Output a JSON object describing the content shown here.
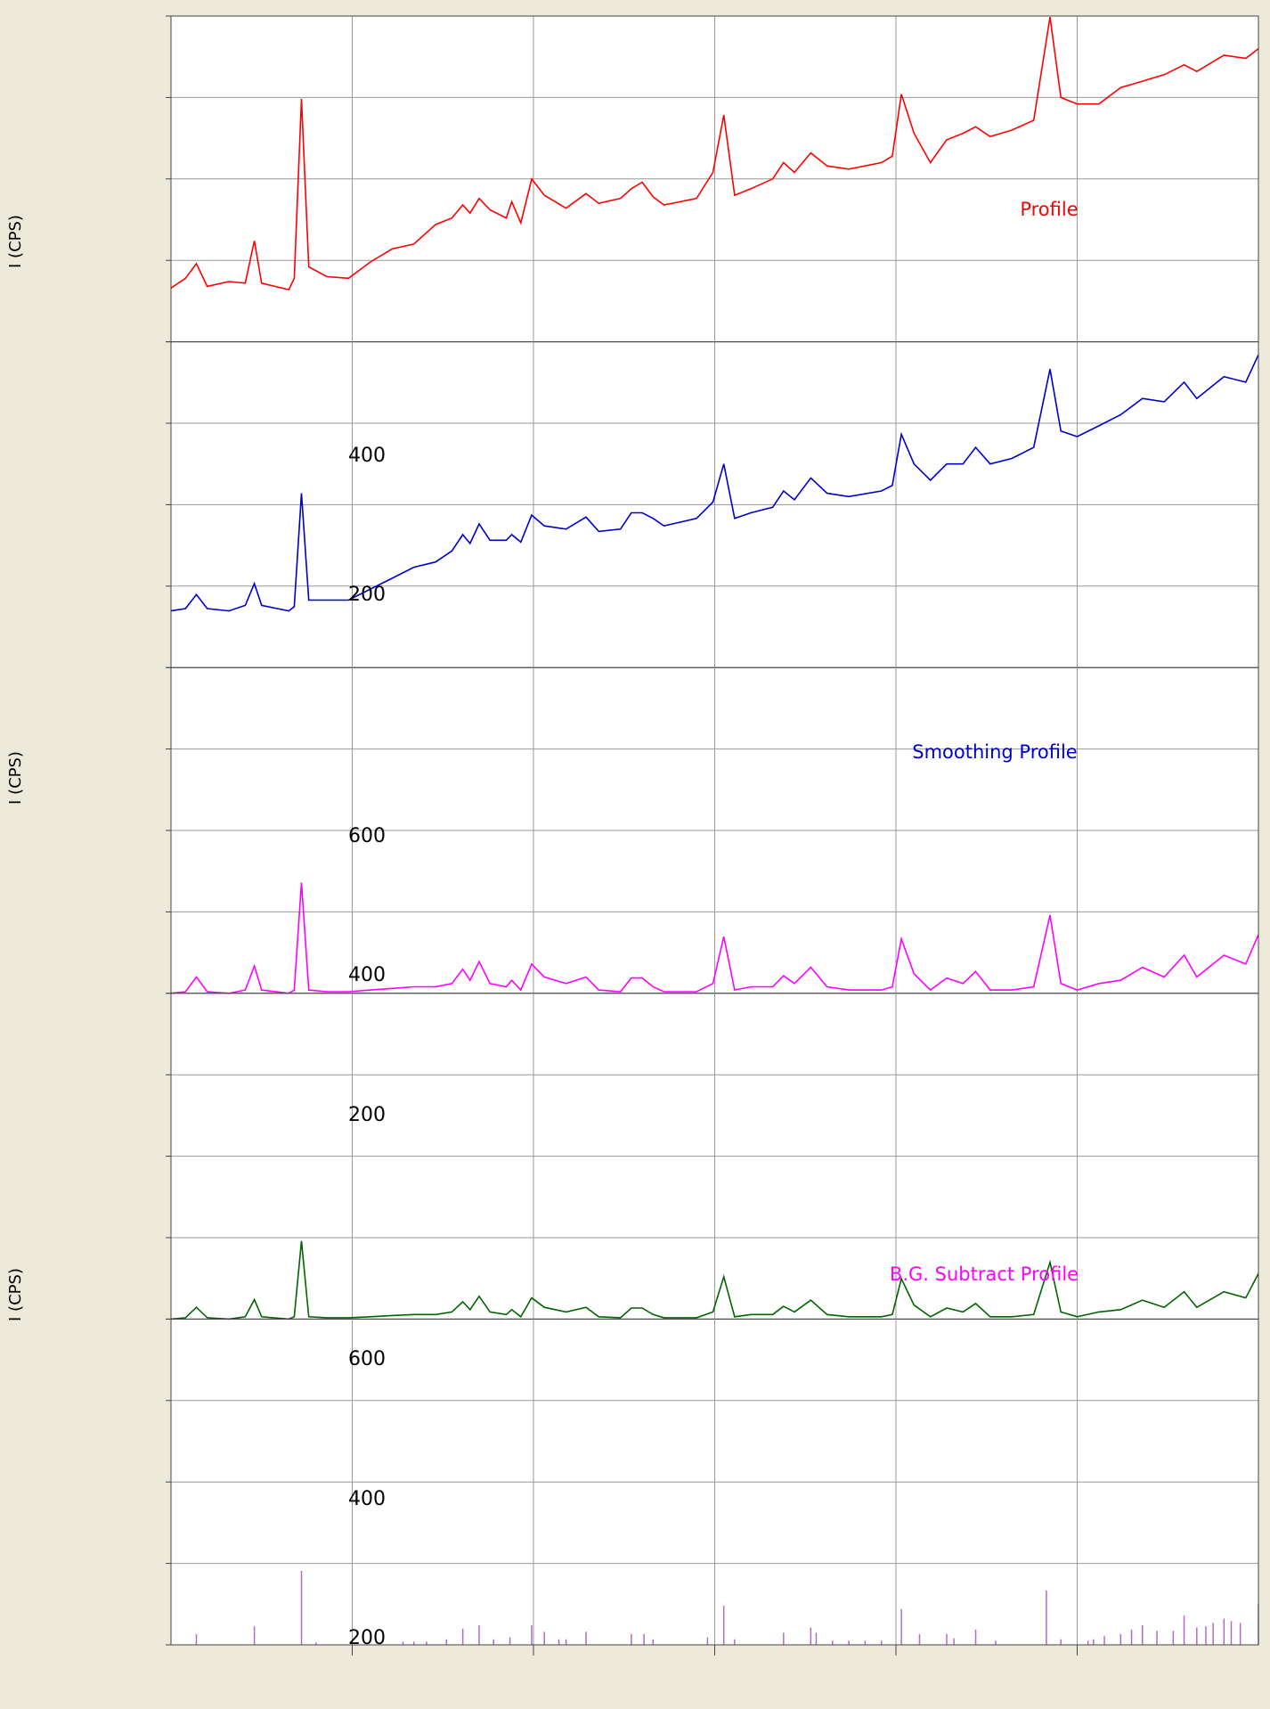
{
  "chart_data": [
    {
      "type": "line",
      "xlim": [
        0,
        60
      ],
      "ylim": [
        0,
        100
      ],
      "xticks": [
        10,
        20,
        30,
        40,
        50
      ],
      "yticks": [
        0,
        25,
        50,
        75,
        100
      ],
      "grid": true,
      "x": [
        0,
        0.8,
        1.4,
        2.0,
        3.2,
        4.1,
        4.6,
        5.0,
        6.5,
        6.8,
        7.2,
        7.6,
        8.6,
        9.8,
        11.0,
        12.2,
        13.4,
        14.6,
        15.5,
        16.1,
        16.5,
        17.0,
        17.6,
        18.5,
        18.8,
        19.3,
        19.9,
        20.6,
        21.8,
        22.9,
        23.6,
        24.8,
        25.4,
        26.0,
        26.6,
        27.2,
        29.0,
        29.9,
        30.5,
        31.1,
        32.0,
        33.2,
        33.8,
        34.4,
        35.3,
        36.2,
        37.4,
        39.2,
        39.8,
        40.3,
        41.0,
        41.9,
        42.8,
        43.7,
        44.4,
        45.2,
        46.4,
        47.6,
        48.5,
        49.1,
        50.0,
        51.2,
        52.4,
        53.6,
        54.8,
        55.9,
        56.6,
        58.1,
        59.3,
        60.0
      ],
      "series": [
        {
          "color": "#ff0000",
          "values": [
            16.5,
            19.5,
            24,
            17,
            18.5,
            18,
            31,
            18,
            16,
            19.5,
            74.6,
            23,
            20,
            19.5,
            24.5,
            28.5,
            30,
            36,
            38,
            42,
            39.5,
            44,
            40.5,
            38,
            43,
            36.5,
            50,
            45,
            41,
            45.5,
            42.5,
            44,
            47,
            49,
            44.5,
            42,
            44,
            52,
            69.6,
            45,
            47,
            50,
            55,
            52,
            58,
            54,
            53,
            55,
            57,
            76,
            64,
            55,
            62,
            64,
            66,
            63,
            65,
            68,
            99.7,
            75,
            73,
            73,
            78,
            80,
            82,
            85,
            83,
            88,
            87,
            90
          ]
        },
        {
          "color": "#0000cc",
          "values": [
            17.4,
            18.1,
            22.4,
            18.1,
            17.4,
            19.1,
            25.8,
            19.1,
            17.4,
            18.7,
            53.5,
            20.7,
            20.7,
            20.7,
            24.1,
            27.4,
            30.8,
            32.4,
            35.8,
            40.8,
            38.1,
            44.1,
            39.1,
            39.1,
            40.8,
            38.5,
            46.8,
            43.5,
            42.5,
            46.2,
            41.8,
            42.5,
            47.5,
            47.5,
            45.8,
            43.5,
            45.8,
            50.8,
            62.5,
            45.8,
            47.5,
            49.2,
            54.2,
            51.5,
            58.2,
            53.5,
            52.5,
            54.2,
            55.9,
            71.6,
            62.5,
            57.5,
            62.5,
            62.5,
            67.6,
            62.5,
            64.2,
            67.6,
            91.6,
            72.6,
            70.9,
            74.2,
            77.6,
            82.6,
            81.6,
            87.6,
            82.6,
            89.3,
            87.6,
            96
          ]
        },
        {
          "color": "#ff00ff",
          "values": [
            0,
            0.5,
            5,
            0.5,
            0,
            1,
            8.4,
            1,
            0,
            1,
            34,
            1,
            0.5,
            0.5,
            1,
            1.5,
            2,
            2,
            3,
            7.4,
            4,
            9.7,
            3,
            2,
            4,
            1,
            9,
            5,
            3,
            5,
            1,
            0.5,
            4.7,
            4.7,
            2,
            0.5,
            0.5,
            3,
            17.4,
            1,
            2,
            2,
            5.4,
            3,
            8,
            2,
            1,
            1,
            2,
            16.7,
            6,
            1,
            4.7,
            3,
            6.7,
            1,
            1,
            2,
            24,
            3,
            1,
            3,
            4,
            8,
            5,
            11.7,
            5,
            11.7,
            9,
            18
          ]
        },
        {
          "color": "#006400",
          "values": [
            0,
            0.4,
            3.6,
            0.4,
            0,
            0.7,
            6,
            0.7,
            0,
            0.7,
            24,
            0.7,
            0.4,
            0.4,
            0.7,
            1.1,
            1.4,
            1.4,
            2.2,
            5.3,
            2.9,
            7,
            2.2,
            1.4,
            2.9,
            0.7,
            6.5,
            3.6,
            2.2,
            3.6,
            0.7,
            0.4,
            3.4,
            3.4,
            1.4,
            0.4,
            0.4,
            2.2,
            13,
            0.7,
            1.4,
            1.4,
            3.9,
            2.2,
            5.8,
            1.4,
            0.7,
            0.7,
            1.4,
            12.4,
            4.3,
            0.7,
            3.4,
            2.2,
            4.8,
            0.7,
            0.7,
            1.4,
            17.4,
            2.2,
            0.7,
            2.2,
            2.9,
            5.8,
            3.6,
            8.4,
            3.6,
            8.4,
            6.5,
            14
          ]
        }
      ]
    },
    {
      "type": "stem",
      "xlim": [
        0,
        60
      ],
      "ylim": [
        0,
        100
      ],
      "xticks": [
        10,
        20,
        30,
        40,
        50
      ],
      "yticks": [
        0,
        25,
        50,
        75,
        100
      ],
      "grid": true,
      "color": "#b06cc8",
      "x": [
        1.4,
        4.6,
        7.2,
        8.0,
        12.8,
        13.4,
        14.1,
        15.2,
        16.1,
        17.0,
        17.8,
        18.7,
        19.9,
        20.6,
        21.4,
        21.8,
        22.9,
        25.4,
        26.1,
        26.6,
        29.6,
        30.5,
        31.1,
        33.8,
        35.3,
        35.6,
        36.5,
        37.4,
        38.3,
        39.2,
        40.3,
        41.3,
        42.8,
        43.2,
        44.4,
        45.5,
        48.3,
        49.1,
        50.6,
        50.9,
        51.5,
        52.4,
        53.0,
        53.6,
        54.4,
        55.3,
        55.9,
        56.6,
        57.1,
        57.5,
        58.1,
        58.5,
        59.0,
        60.0
      ],
      "values": [
        3.3,
        5.7,
        22.7,
        0.7,
        1,
        1,
        1,
        1.7,
        5,
        6,
        1.7,
        2.3,
        6,
        4,
        1.7,
        1.7,
        4,
        3.3,
        3.3,
        1.7,
        2.3,
        12,
        1.7,
        3.7,
        5.3,
        3.7,
        1.3,
        1.3,
        1.3,
        1.3,
        11,
        3.3,
        3.3,
        2,
        4.7,
        1.3,
        16.7,
        1.7,
        1.3,
        1.7,
        2.7,
        3.3,
        4.7,
        6,
        4.3,
        4.3,
        9,
        5.3,
        5.7,
        6.7,
        8,
        7.3,
        6.7,
        12.7
      ]
    }
  ],
  "labels": [
    {
      "text": "Profile",
      "color": "#ff0000"
    },
    {
      "text": "Smoothing Profile",
      "color": "#0000cc"
    },
    {
      "text": "B.G. Subtract Profile",
      "color": "#ff00ff"
    }
  ],
  "ylabels": [
    "I (CPS)",
    "I (CPS)",
    "I (CPS)"
  ],
  "floating_labels": [
    400,
    200,
    600,
    400,
    200,
    600,
    400,
    200
  ]
}
